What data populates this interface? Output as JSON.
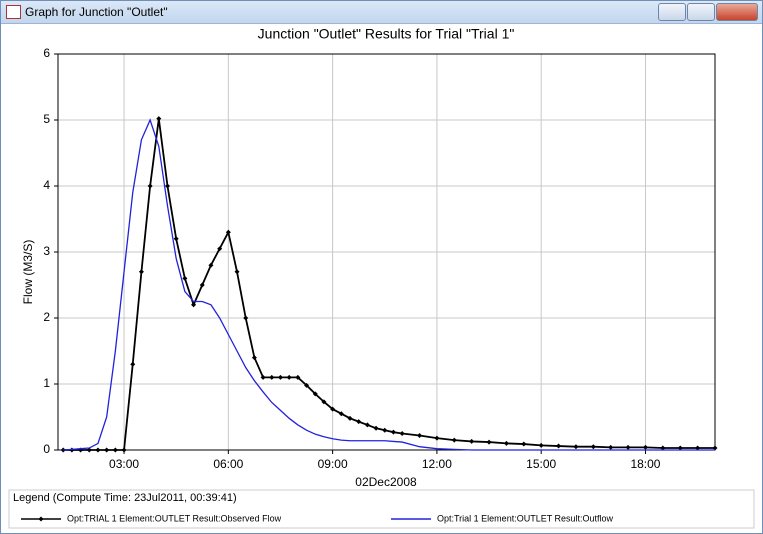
{
  "window": {
    "title": "Graph for Junction \"Outlet\""
  },
  "chart_data": {
    "type": "line",
    "title": "Junction \"Outlet\" Results for Trial \"Trial 1\"",
    "y_label": "Flow (M3/S)",
    "x_label": "02Dec2008",
    "legend_title": "Legend (Compute Time: 23Jul2011, 00:39:41)",
    "xlim": [
      1.1,
      20
    ],
    "ylim": [
      0,
      6
    ],
    "xticks": [
      {
        "value": 3,
        "label": "03:00"
      },
      {
        "value": 6,
        "label": "06:00"
      },
      {
        "value": 9,
        "label": "09:00"
      },
      {
        "value": 12,
        "label": "12:00"
      },
      {
        "value": 15,
        "label": "15:00"
      },
      {
        "value": 18,
        "label": "18:00"
      }
    ],
    "yticks": [
      0,
      1,
      2,
      3,
      4,
      5,
      6
    ],
    "grid": true,
    "x": [
      1.25,
      1.5,
      1.75,
      2,
      2.25,
      2.5,
      2.75,
      3,
      3.25,
      3.5,
      3.75,
      4,
      4.25,
      4.5,
      4.75,
      5,
      5.25,
      5.5,
      5.75,
      6,
      6.25,
      6.5,
      6.75,
      7,
      7.25,
      7.5,
      7.75,
      8,
      8.25,
      8.5,
      8.75,
      9,
      9.25,
      9.5,
      9.75,
      10,
      10.25,
      10.5,
      10.75,
      11,
      11.5,
      12,
      12.5,
      13,
      13.5,
      14,
      14.5,
      15,
      15.5,
      16,
      16.5,
      17,
      17.5,
      18,
      18.5,
      19,
      19.5,
      20
    ],
    "series": [
      {
        "name": "Opt:TRIAL 1 Element:OUTLET Result:Observed Flow",
        "color": "#000000",
        "markers": true,
        "values": [
          0,
          0,
          0,
          0,
          0,
          0,
          0,
          0,
          1.3,
          2.7,
          4.0,
          5.02,
          4.0,
          3.2,
          2.6,
          2.2,
          2.5,
          2.8,
          3.05,
          3.3,
          2.7,
          2.0,
          1.4,
          1.1,
          1.1,
          1.1,
          1.1,
          1.1,
          0.98,
          0.85,
          0.73,
          0.62,
          0.55,
          0.48,
          0.43,
          0.38,
          0.33,
          0.3,
          0.27,
          0.25,
          0.22,
          0.18,
          0.15,
          0.13,
          0.12,
          0.1,
          0.09,
          0.07,
          0.06,
          0.05,
          0.05,
          0.04,
          0.04,
          0.04,
          0.03,
          0.03,
          0.03,
          0.03
        ]
      },
      {
        "name": "Opt:Trial 1 Element:OUTLET Result:Outflow",
        "color": "#2222dd",
        "markers": false,
        "values": [
          0,
          0.01,
          0.02,
          0.03,
          0.1,
          0.5,
          1.5,
          2.7,
          3.9,
          4.7,
          5.0,
          4.6,
          3.7,
          2.9,
          2.4,
          2.25,
          2.25,
          2.2,
          2.0,
          1.75,
          1.5,
          1.25,
          1.05,
          0.88,
          0.72,
          0.6,
          0.48,
          0.38,
          0.3,
          0.24,
          0.2,
          0.17,
          0.15,
          0.14,
          0.14,
          0.14,
          0.14,
          0.14,
          0.13,
          0.12,
          0.05,
          0.02,
          0.01,
          0,
          0,
          0,
          0,
          0,
          0,
          0,
          0,
          0,
          0,
          0,
          0,
          0,
          0,
          0
        ]
      }
    ]
  }
}
